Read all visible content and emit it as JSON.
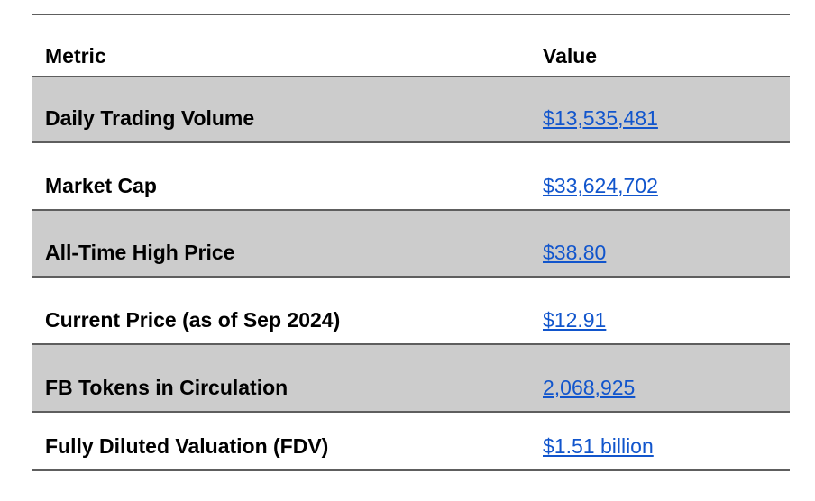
{
  "table": {
    "columns": [
      {
        "label": "Metric"
      },
      {
        "label": "Value"
      }
    ],
    "rows": [
      {
        "metric": "Daily Trading Volume",
        "value": "$13,535,481",
        "shaded": true
      },
      {
        "metric": "Market Cap",
        "value": "$33,624,702",
        "shaded": false
      },
      {
        "metric": "All-Time High Price",
        "value": "$38.80",
        "shaded": true
      },
      {
        "metric": "Current Price (as of Sep 2024)",
        "value": "$12.91",
        "shaded": false
      },
      {
        "metric": "FB Tokens in Circulation",
        "value": "2,068,925",
        "shaded": true
      },
      {
        "metric": "Fully Diluted Valuation (FDV)",
        "value": "$1.51 billion",
        "shaded": false
      }
    ],
    "colors": {
      "shaded_row_background": "#cccccc",
      "row_border": "#5e5e5e",
      "link_blue": "#1155cc",
      "text": "#000000",
      "page_background": "#ffffff"
    }
  }
}
